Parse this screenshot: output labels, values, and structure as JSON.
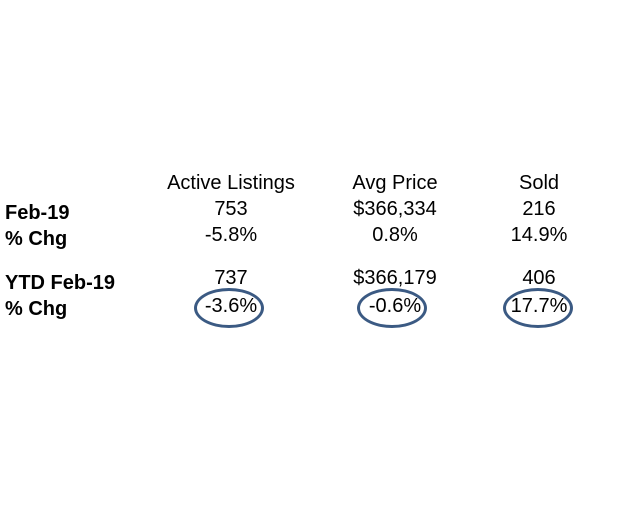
{
  "columns": [
    {
      "header": "Active Listings",
      "feb": "753",
      "feb_chg": "-5.8%",
      "ytd": "737",
      "ytd_chg": "-3.6%"
    },
    {
      "header": "Avg Price",
      "feb": "$366,334",
      "feb_chg": "0.8%",
      "ytd": "$366,179",
      "ytd_chg": "-0.6%"
    },
    {
      "header": "Sold",
      "feb": "216",
      "feb_chg": "14.9%",
      "ytd": "406",
      "ytd_chg": "17.7%"
    }
  ],
  "rows": {
    "feb_label": "Feb-19",
    "feb_chg_label": "% Chg",
    "ytd_label": "YTD Feb-19",
    "ytd_chg_label": "% Chg"
  },
  "colors": {
    "highlight": "#3b5a83",
    "text": "#000000"
  },
  "annotations": {
    "circled_cells": [
      "ytd_chg"
    ]
  }
}
